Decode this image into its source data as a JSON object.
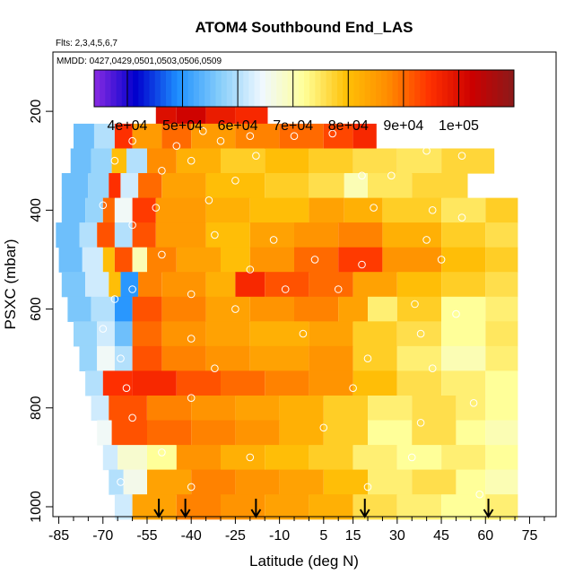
{
  "chart_data": {
    "type": "heatmap",
    "title": "ATOM4 Southbound End_LAS",
    "flights_note": "Flts: 2,3,4,5,6,7",
    "dates_note": "MMDD: 0427,0429,0501,0503,0506,0509",
    "xlabel": "Latitude (deg N)",
    "ylabel": "PSXC (mbar)",
    "xlim": [
      -87,
      84
    ],
    "ylim": [
      1020,
      80
    ],
    "x_tick_labels": [
      "-85",
      "-70",
      "-55",
      "-40",
      "-25",
      "-10",
      "5",
      "15",
      "30",
      "45",
      "60",
      "75"
    ],
    "x_tick_values": [
      -85,
      -70,
      -55,
      -40,
      -25,
      -10,
      5,
      15,
      30,
      45,
      60,
      75
    ],
    "x_minor_ticks": [
      -80,
      -75,
      -65,
      -60,
      -50,
      -45,
      -35,
      -30,
      -20,
      -15,
      -5,
      0,
      10,
      20,
      25,
      35,
      40,
      50,
      55,
      65,
      70,
      80
    ],
    "y_tick_labels": [
      "200",
      "400",
      "600",
      "800",
      "1000"
    ],
    "y_tick_values": [
      200,
      400,
      600,
      800,
      1000
    ],
    "colorbar": {
      "range": [
        34000,
        110000
      ],
      "tick_labels": [
        "4e+04",
        "5e+04",
        "6e+04",
        "7e+04",
        "8e+04",
        "9e+04",
        "1e+05"
      ],
      "tick_values": [
        40000,
        50000,
        60000,
        70000,
        80000,
        90000,
        100000
      ],
      "colors": [
        "#8a2be2",
        "#0000cd",
        "#1e90ff",
        "#87cefa",
        "#f0f8ff",
        "#ffff99",
        "#ffc107",
        "#ff8c00",
        "#ff3000",
        "#cc0000",
        "#8b1a1a"
      ]
    },
    "rows": [
      {
        "p": 200,
        "extent": [
          -52,
          -14
        ],
        "segments": [
          [
            -52,
            100000
          ],
          [
            -45,
            102000
          ],
          [
            -35,
            98000
          ],
          [
            -25,
            96000
          ]
        ]
      },
      {
        "p": 250,
        "extent": [
          -80,
          23
        ],
        "segments": [
          [
            -80,
            55000
          ],
          [
            -73,
            60000
          ],
          [
            -66,
            95000
          ],
          [
            -60,
            85000
          ],
          [
            -50,
            90000
          ],
          [
            -40,
            85000
          ],
          [
            -25,
            88000
          ],
          [
            -10,
            90000
          ],
          [
            5,
            93000
          ],
          [
            15,
            96000
          ]
        ]
      },
      {
        "p": 300,
        "extent": [
          -81,
          63
        ],
        "segments": [
          [
            -81,
            55000
          ],
          [
            -74,
            58000
          ],
          [
            -67,
            80000
          ],
          [
            -62,
            60000
          ],
          [
            -55,
            87000
          ],
          [
            -45,
            82000
          ],
          [
            -30,
            78000
          ],
          [
            -15,
            80000
          ],
          [
            0,
            78000
          ],
          [
            15,
            76000
          ],
          [
            30,
            75000
          ],
          [
            45,
            77000
          ]
        ]
      },
      {
        "p": 350,
        "extent": [
          -84,
          54
        ],
        "segments": [
          [
            -84,
            55000
          ],
          [
            -75,
            58000
          ],
          [
            -68,
            95000
          ],
          [
            -64,
            62000
          ],
          [
            -58,
            90000
          ],
          [
            -50,
            84000
          ],
          [
            -35,
            80000
          ],
          [
            -15,
            78000
          ],
          [
            0,
            76000
          ],
          [
            12,
            70000
          ],
          [
            20,
            75000
          ],
          [
            35,
            77000
          ]
        ]
      },
      {
        "p": 400,
        "extent": [
          -84,
          71
        ],
        "segments": [
          [
            -84,
            55000
          ],
          [
            -76,
            58000
          ],
          [
            -70,
            90000
          ],
          [
            -66,
            65000
          ],
          [
            -60,
            94000
          ],
          [
            -52,
            85000
          ],
          [
            -35,
            82000
          ],
          [
            -20,
            80000
          ],
          [
            0,
            84000
          ],
          [
            12,
            82000
          ],
          [
            25,
            78000
          ],
          [
            45,
            75000
          ],
          [
            60,
            78000
          ]
        ]
      },
      {
        "p": 450,
        "extent": [
          -86,
          71
        ],
        "segments": [
          [
            -86,
            55000
          ],
          [
            -78,
            60000
          ],
          [
            -72,
            92000
          ],
          [
            -66,
            60000
          ],
          [
            -60,
            92000
          ],
          [
            -52,
            85000
          ],
          [
            -35,
            80000
          ],
          [
            -20,
            84000
          ],
          [
            -5,
            86000
          ],
          [
            10,
            88000
          ],
          [
            25,
            82000
          ],
          [
            45,
            78000
          ],
          [
            60,
            76000
          ]
        ]
      },
      {
        "p": 500,
        "extent": [
          -85,
          71
        ],
        "segments": [
          [
            -85,
            55000
          ],
          [
            -77,
            62000
          ],
          [
            -70,
            80000
          ],
          [
            -66,
            92000
          ],
          [
            -60,
            70000
          ],
          [
            -55,
            88000
          ],
          [
            -45,
            84000
          ],
          [
            -30,
            80000
          ],
          [
            -20,
            86000
          ],
          [
            -5,
            90000
          ],
          [
            10,
            94000
          ],
          [
            25,
            86000
          ],
          [
            45,
            80000
          ],
          [
            60,
            78000
          ]
        ]
      },
      {
        "p": 550,
        "extent": [
          -84,
          71
        ],
        "segments": [
          [
            -84,
            56000
          ],
          [
            -76,
            62000
          ],
          [
            -68,
            80000
          ],
          [
            -64,
            50000
          ],
          [
            -58,
            88000
          ],
          [
            -50,
            86000
          ],
          [
            -35,
            82000
          ],
          [
            -25,
            96000
          ],
          [
            -15,
            92000
          ],
          [
            0,
            90000
          ],
          [
            15,
            84000
          ],
          [
            30,
            80000
          ],
          [
            45,
            78000
          ],
          [
            60,
            76000
          ]
        ]
      },
      {
        "p": 600,
        "extent": [
          -82,
          71
        ],
        "segments": [
          [
            -82,
            56000
          ],
          [
            -74,
            60000
          ],
          [
            -66,
            50000
          ],
          [
            -60,
            92000
          ],
          [
            -50,
            88000
          ],
          [
            -35,
            84000
          ],
          [
            -20,
            86000
          ],
          [
            -5,
            88000
          ],
          [
            10,
            84000
          ],
          [
            20,
            74000
          ],
          [
            30,
            78000
          ],
          [
            45,
            72000
          ],
          [
            60,
            74000
          ]
        ]
      },
      {
        "p": 650,
        "extent": [
          -80,
          71
        ],
        "segments": [
          [
            -80,
            58000
          ],
          [
            -72,
            62000
          ],
          [
            -66,
            55000
          ],
          [
            -60,
            90000
          ],
          [
            -50,
            86000
          ],
          [
            -35,
            84000
          ],
          [
            -20,
            82000
          ],
          [
            0,
            84000
          ],
          [
            15,
            78000
          ],
          [
            30,
            76000
          ],
          [
            45,
            72000
          ],
          [
            60,
            75000
          ]
        ]
      },
      {
        "p": 700,
        "extent": [
          -78,
          71
        ],
        "segments": [
          [
            -78,
            58000
          ],
          [
            -72,
            65000
          ],
          [
            -66,
            60000
          ],
          [
            -60,
            92000
          ],
          [
            -50,
            88000
          ],
          [
            -35,
            86000
          ],
          [
            -20,
            84000
          ],
          [
            0,
            86000
          ],
          [
            15,
            78000
          ],
          [
            30,
            74000
          ],
          [
            45,
            70000
          ],
          [
            60,
            74000
          ]
        ]
      },
      {
        "p": 750,
        "extent": [
          -76,
          71
        ],
        "segments": [
          [
            -76,
            60000
          ],
          [
            -70,
            95000
          ],
          [
            -60,
            96000
          ],
          [
            -45,
            92000
          ],
          [
            -30,
            90000
          ],
          [
            -15,
            88000
          ],
          [
            0,
            86000
          ],
          [
            15,
            80000
          ],
          [
            30,
            76000
          ],
          [
            45,
            74000
          ],
          [
            60,
            72000
          ]
        ]
      },
      {
        "p": 800,
        "extent": [
          -74,
          71
        ],
        "segments": [
          [
            -74,
            62000
          ],
          [
            -68,
            92000
          ],
          [
            -55,
            88000
          ],
          [
            -40,
            86000
          ],
          [
            -25,
            84000
          ],
          [
            -10,
            82000
          ],
          [
            5,
            78000
          ],
          [
            20,
            74000
          ],
          [
            35,
            76000
          ],
          [
            50,
            74000
          ],
          [
            60,
            72000
          ]
        ]
      },
      {
        "p": 850,
        "extent": [
          -72,
          71
        ],
        "segments": [
          [
            -72,
            65000
          ],
          [
            -67,
            92000
          ],
          [
            -55,
            90000
          ],
          [
            -40,
            88000
          ],
          [
            -25,
            86000
          ],
          [
            -10,
            82000
          ],
          [
            5,
            78000
          ],
          [
            20,
            72000
          ],
          [
            35,
            76000
          ],
          [
            50,
            72000
          ],
          [
            60,
            70000
          ]
        ]
      },
      {
        "p": 900,
        "extent": [
          -70,
          71
        ],
        "segments": [
          [
            -70,
            62000
          ],
          [
            -65,
            68000
          ],
          [
            -55,
            72000
          ],
          [
            -45,
            86000
          ],
          [
            -30,
            82000
          ],
          [
            -15,
            80000
          ],
          [
            0,
            78000
          ],
          [
            15,
            74000
          ],
          [
            30,
            72000
          ],
          [
            45,
            74000
          ],
          [
            60,
            72000
          ]
        ]
      },
      {
        "p": 950,
        "extent": [
          -68,
          71
        ],
        "segments": [
          [
            -68,
            60000
          ],
          [
            -63,
            66000
          ],
          [
            -55,
            84000
          ],
          [
            -40,
            88000
          ],
          [
            -25,
            86000
          ],
          [
            -10,
            84000
          ],
          [
            5,
            80000
          ],
          [
            20,
            74000
          ],
          [
            35,
            76000
          ],
          [
            50,
            72000
          ],
          [
            60,
            70000
          ]
        ]
      },
      {
        "p": 1000,
        "extent": [
          -66,
          71
        ],
        "segments": [
          [
            -66,
            62000
          ],
          [
            -60,
            84000
          ],
          [
            -45,
            88000
          ],
          [
            -30,
            86000
          ],
          [
            -15,
            84000
          ],
          [
            0,
            82000
          ],
          [
            15,
            76000
          ],
          [
            30,
            74000
          ],
          [
            45,
            72000
          ],
          [
            60,
            74000
          ]
        ]
      }
    ],
    "circles": [
      [
        -36,
        240
      ],
      [
        -20,
        250
      ],
      [
        -5,
        250
      ],
      [
        8,
        245
      ],
      [
        -60,
        260
      ],
      [
        -45,
        270
      ],
      [
        -30,
        260
      ],
      [
        -40,
        300
      ],
      [
        -18,
        290
      ],
      [
        40,
        280
      ],
      [
        52,
        290
      ],
      [
        -66,
        300
      ],
      [
        -50,
        320
      ],
      [
        -25,
        340
      ],
      [
        18,
        330
      ],
      [
        28,
        330
      ],
      [
        -70,
        390
      ],
      [
        -52,
        395
      ],
      [
        -34,
        380
      ],
      [
        22,
        395
      ],
      [
        42,
        400
      ],
      [
        52,
        415
      ],
      [
        -60,
        430
      ],
      [
        -32,
        450
      ],
      [
        -12,
        460
      ],
      [
        40,
        460
      ],
      [
        -50,
        490
      ],
      [
        -20,
        520
      ],
      [
        2,
        500
      ],
      [
        18,
        510
      ],
      [
        45,
        500
      ],
      [
        -60,
        560
      ],
      [
        -40,
        570
      ],
      [
        -8,
        560
      ],
      [
        10,
        560
      ],
      [
        -66,
        580
      ],
      [
        -25,
        600
      ],
      [
        36,
        590
      ],
      [
        50,
        610
      ],
      [
        -70,
        640
      ],
      [
        -40,
        660
      ],
      [
        -2,
        650
      ],
      [
        38,
        650
      ],
      [
        -64,
        700
      ],
      [
        -32,
        720
      ],
      [
        20,
        700
      ],
      [
        42,
        720
      ],
      [
        -62,
        760
      ],
      [
        -40,
        780
      ],
      [
        15,
        760
      ],
      [
        56,
        790
      ],
      [
        -60,
        820
      ],
      [
        5,
        840
      ],
      [
        38,
        830
      ],
      [
        -50,
        890
      ],
      [
        -20,
        900
      ],
      [
        35,
        900
      ],
      [
        -64,
        950
      ],
      [
        -40,
        960
      ],
      [
        20,
        960
      ],
      [
        58,
        975
      ]
    ],
    "arrows": [
      -51,
      -42,
      -18,
      19,
      61
    ]
  }
}
